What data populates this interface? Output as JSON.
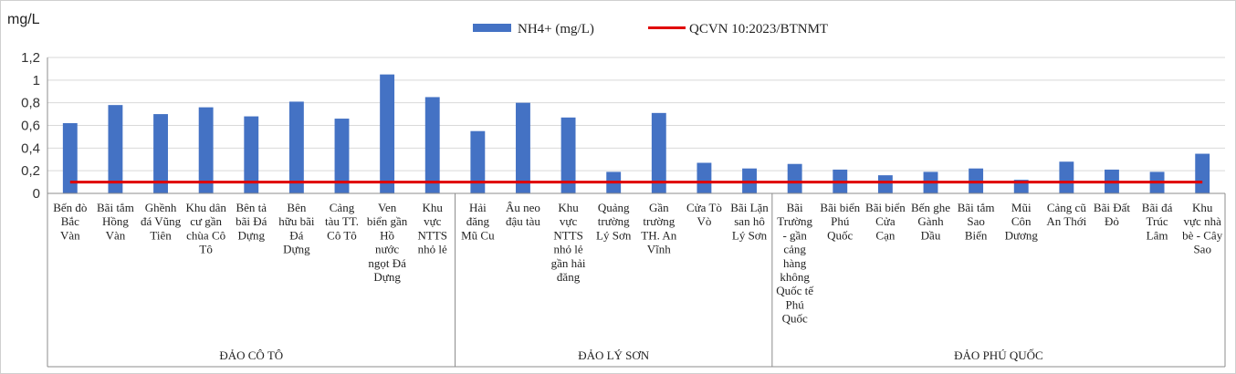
{
  "chart_data": {
    "type": "bar",
    "y_unit_label": "mg/L",
    "ylim": [
      0,
      1.2
    ],
    "yticks": [
      "0",
      "0,2",
      "0,4",
      "0,6",
      "0,8",
      "1",
      "1,2"
    ],
    "grid": true,
    "legend_position": "top",
    "colors": {
      "bar": "#4472C4",
      "line": "#E00000"
    },
    "categories": [
      "Bến đò Bắc Vàn",
      "Bãi tắm Hồng Vàn",
      "Ghềnh đá Vũng Tiên",
      "Khu dân cư gần chùa Cô Tô",
      "Bên tả bãi Đá Dựng",
      "Bên hữu bãi Đá Dựng",
      "Cảng tàu TT. Cô Tô",
      "Ven biển gần Hồ nước ngọt Đá Dựng",
      "Khu vực NTTS nhỏ lẻ",
      "Hải đăng Mũ Cu",
      "Âu neo đậu tàu",
      "Khu vực NTTS nhỏ lẻ gần hải đăng",
      "Quảng trường Lý Sơn",
      "Gần trường TH. An Vĩnh",
      "Cửa Tò Vò",
      "Bãi Lặn san hô Lý Sơn",
      "Bãi Trường - gần cảng hàng không Quốc tế Phú Quốc",
      "Bãi biển Phú Quốc",
      "Bãi biển Cửa Cạn",
      "Bến ghe Gành Dầu",
      "Bãi tắm Sao Biển",
      "Mũi Côn Dương",
      "Cảng cũ An Thới",
      "Bãi Đất Đỏ",
      "Bãi đá Trúc Lâm",
      "Khu vực nhà bè - Cây Sao"
    ],
    "category_lines": [
      [
        "Bến đò",
        "Bắc",
        "Vàn"
      ],
      [
        "Bãi tắm",
        "Hồng",
        "Vàn"
      ],
      [
        "Ghềnh",
        "đá Vũng",
        "Tiên"
      ],
      [
        "Khu dân",
        "cư gần",
        "chùa Cô",
        "Tô"
      ],
      [
        "Bên tả",
        "bãi Đá",
        "Dựng"
      ],
      [
        "Bên",
        "hữu bãi",
        "Đá",
        "Dựng"
      ],
      [
        "Cảng",
        "tàu TT.",
        "Cô Tô"
      ],
      [
        "Ven",
        "biển gần",
        "Hồ",
        "nước",
        "ngọt Đá",
        "Dựng"
      ],
      [
        "Khu",
        "vực",
        "NTTS",
        "nhỏ lẻ"
      ],
      [
        "Hải",
        "đăng",
        "Mũ Cu"
      ],
      [
        "Âu neo",
        "đậu tàu"
      ],
      [
        "Khu",
        "vực",
        "NTTS",
        "nhỏ lẻ",
        "gần hải",
        "đăng"
      ],
      [
        "Quảng",
        "trường",
        "Lý Sơn"
      ],
      [
        "Gần",
        "trường",
        "TH. An",
        "Vĩnh"
      ],
      [
        "Cửa Tò",
        "Vò"
      ],
      [
        "Bãi Lặn",
        "san hô",
        "Lý Sơn"
      ],
      [
        "Bãi",
        "Trường",
        "- gần",
        "cảng",
        "hàng",
        "không",
        "Quốc tế",
        "Phú",
        "Quốc"
      ],
      [
        "Bãi biển",
        "Phú",
        "Quốc"
      ],
      [
        "Bãi biển",
        "Cửa",
        "Cạn"
      ],
      [
        "Bến ghe",
        "Gành",
        "Dầu"
      ],
      [
        "Bãi tắm",
        "Sao",
        "Biển"
      ],
      [
        "Mũi",
        "Côn",
        "Dương"
      ],
      [
        "Cảng cũ",
        "An Thới"
      ],
      [
        "Bãi Đất",
        "Đỏ"
      ],
      [
        "Bãi đá",
        "Trúc",
        "Lâm"
      ],
      [
        "Khu",
        "vực nhà",
        "bè - Cây",
        "Sao"
      ]
    ],
    "groups": [
      {
        "label": "ĐẢO CÔ TÔ",
        "start": 0,
        "end": 8
      },
      {
        "label": "ĐẢO LÝ SƠN",
        "start": 9,
        "end": 15
      },
      {
        "label": "ĐẢO PHÚ QUỐC",
        "start": 16,
        "end": 25
      }
    ],
    "series": [
      {
        "name": "NH4+ (mg/L)",
        "kind": "bar",
        "values": [
          0.62,
          0.78,
          0.7,
          0.76,
          0.68,
          0.81,
          0.66,
          1.05,
          0.85,
          0.55,
          0.8,
          0.67,
          0.19,
          0.71,
          0.27,
          0.22,
          0.26,
          0.21,
          0.16,
          0.19,
          0.22,
          0.12,
          0.28,
          0.21,
          0.19,
          0.35
        ]
      },
      {
        "name": "QCVN 10:2023/BTNMT",
        "kind": "line",
        "value": 0.1
      }
    ]
  }
}
